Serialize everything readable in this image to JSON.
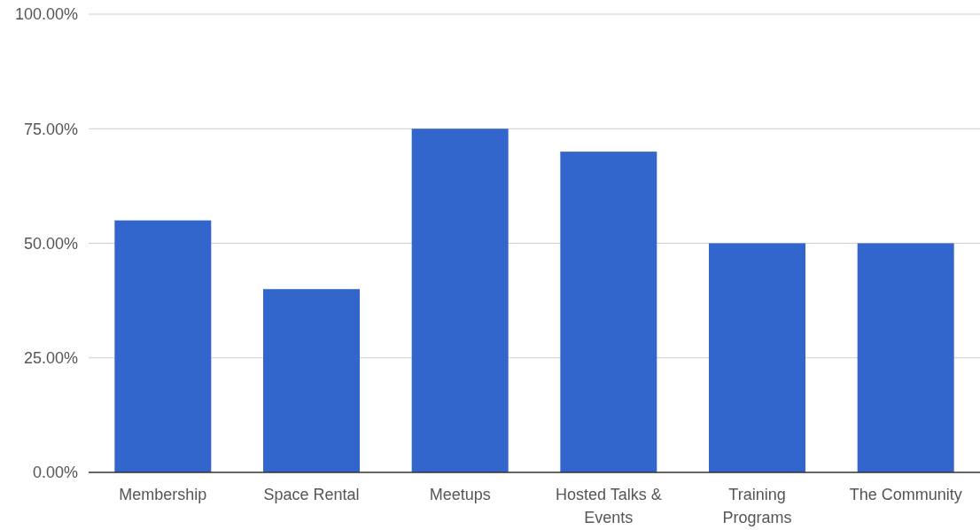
{
  "chart_data": {
    "type": "bar",
    "categories": [
      "Membership",
      "Space Rental",
      "Meetups",
      "Hosted Talks & Events",
      "Training Programs",
      "The Community"
    ],
    "values": [
      55,
      40,
      75,
      70,
      50,
      50
    ],
    "color": "#3366cc",
    "ylim": [
      0,
      100
    ],
    "yticks": [
      {
        "value": 0,
        "label": "0.00%"
      },
      {
        "value": 25,
        "label": "25.00%"
      },
      {
        "value": 50,
        "label": "50.00%"
      },
      {
        "value": 75,
        "label": "75.00%"
      },
      {
        "value": 100,
        "label": "100.00%"
      }
    ],
    "grid": "y"
  }
}
